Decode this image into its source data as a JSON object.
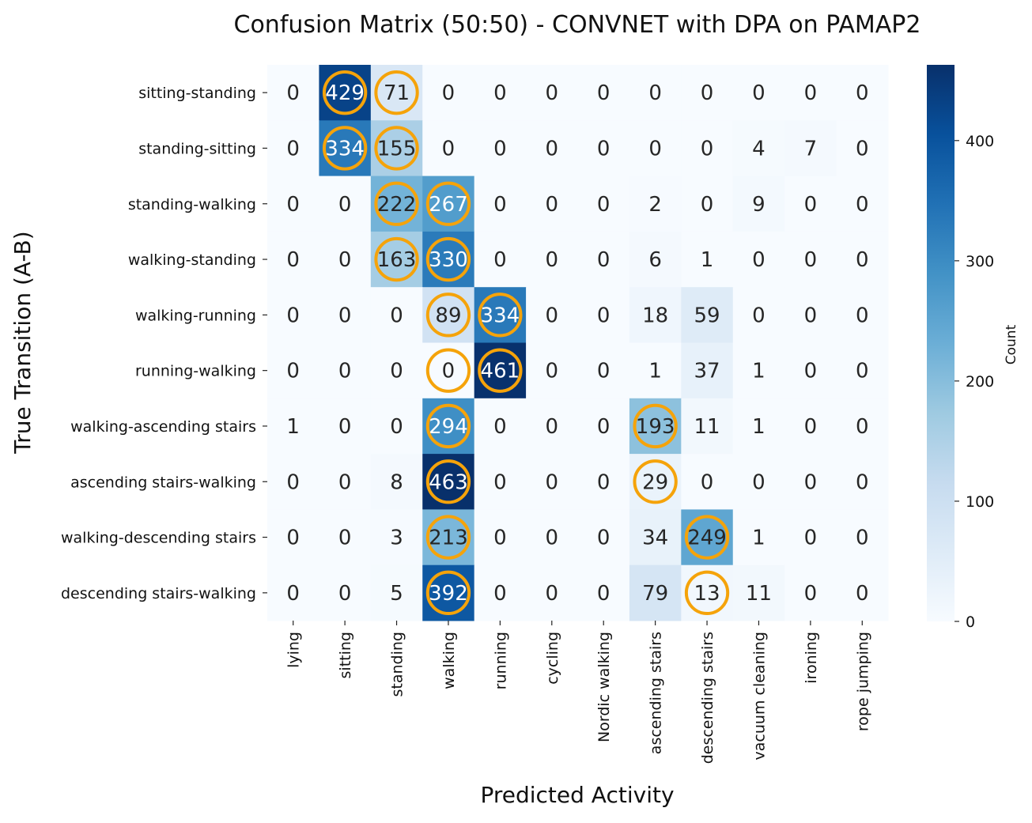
{
  "chart_data": {
    "type": "heatmap",
    "title": "Confusion Matrix (50:50) - CONVNET with DPA on PAMAP2",
    "xlabel": "Predicted Activity",
    "ylabel": "True Transition (A-B)",
    "colorbar": {
      "label": "Count",
      "min": 0,
      "max": 463,
      "ticks": [
        0,
        100,
        200,
        300,
        400
      ],
      "colormap": "Blues"
    },
    "x_categories": [
      "lying",
      "sitting",
      "standing",
      "walking",
      "running",
      "cycling",
      "Nordic walking",
      "ascending stairs",
      "descending stairs",
      "vacuum cleaning",
      "ironing",
      "rope jumping"
    ],
    "y_categories": [
      "sitting-standing",
      "standing-sitting",
      "standing-walking",
      "walking-standing",
      "walking-running",
      "running-walking",
      "walking-ascending stairs",
      "ascending stairs-walking",
      "walking-descending stairs",
      "descending stairs-walking"
    ],
    "values": [
      [
        0,
        429,
        71,
        0,
        0,
        0,
        0,
        0,
        0,
        0,
        0,
        0
      ],
      [
        0,
        334,
        155,
        0,
        0,
        0,
        0,
        0,
        0,
        4,
        7,
        0
      ],
      [
        0,
        0,
        222,
        267,
        0,
        0,
        0,
        2,
        0,
        9,
        0,
        0
      ],
      [
        0,
        0,
        163,
        330,
        0,
        0,
        0,
        6,
        1,
        0,
        0,
        0
      ],
      [
        0,
        0,
        0,
        89,
        334,
        0,
        0,
        18,
        59,
        0,
        0,
        0
      ],
      [
        0,
        0,
        0,
        0,
        461,
        0,
        0,
        1,
        37,
        1,
        0,
        0
      ],
      [
        1,
        0,
        0,
        294,
        0,
        0,
        0,
        193,
        11,
        1,
        0,
        0
      ],
      [
        0,
        0,
        8,
        463,
        0,
        0,
        0,
        29,
        0,
        0,
        0,
        0
      ],
      [
        0,
        0,
        3,
        213,
        0,
        0,
        0,
        34,
        249,
        1,
        0,
        0
      ],
      [
        0,
        0,
        5,
        392,
        0,
        0,
        0,
        79,
        13,
        11,
        0,
        0
      ]
    ],
    "highlighted_cells": [
      [
        0,
        1
      ],
      [
        0,
        2
      ],
      [
        1,
        1
      ],
      [
        1,
        2
      ],
      [
        2,
        2
      ],
      [
        2,
        3
      ],
      [
        3,
        2
      ],
      [
        3,
        3
      ],
      [
        4,
        3
      ],
      [
        4,
        4
      ],
      [
        5,
        3
      ],
      [
        5,
        4
      ],
      [
        6,
        3
      ],
      [
        6,
        7
      ],
      [
        7,
        3
      ],
      [
        7,
        7
      ],
      [
        8,
        3
      ],
      [
        8,
        8
      ],
      [
        9,
        3
      ],
      [
        9,
        8
      ]
    ],
    "highlight_color": "#f5a30a",
    "grid": false
  }
}
